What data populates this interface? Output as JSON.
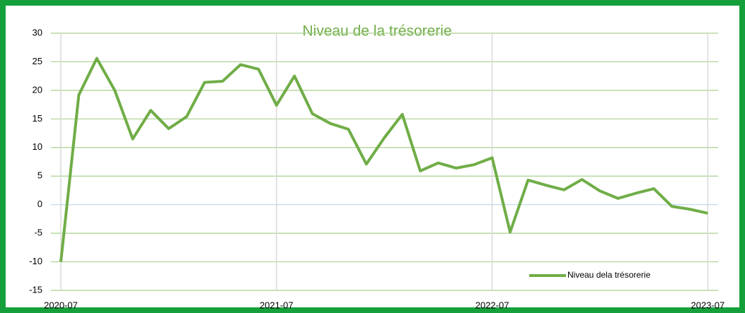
{
  "chart_data": {
    "type": "line",
    "title": "Niveau de la trésorerie",
    "categories": [
      "2020-07",
      null,
      null,
      null,
      null,
      null,
      null,
      null,
      null,
      null,
      null,
      null,
      "2021-07",
      null,
      null,
      null,
      null,
      null,
      null,
      null,
      null,
      null,
      null,
      null,
      "2022-07",
      null,
      null,
      null,
      null,
      null,
      null,
      null,
      null,
      null,
      null,
      null,
      "2023-07"
    ],
    "series": [
      {
        "name": "Niveau dela trésorerie",
        "color": "#70ad47",
        "values": [
          -10,
          19.2,
          25.6,
          20,
          11.5,
          16.5,
          13.3,
          15.4,
          21.4,
          21.6,
          24.5,
          23.7,
          17.4,
          22.5,
          15.9,
          14.2,
          13.2,
          7.1,
          11.7,
          15.8,
          5.9,
          7.3,
          6.4,
          7.0,
          8.2,
          -4.8,
          4.3,
          3.4,
          2.6,
          4.4,
          2.4,
          1.1,
          2.0,
          2.8,
          -0.3,
          -0.8,
          -1.5
        ]
      }
    ],
    "ylim": [
      -15,
      30
    ],
    "yticks": [
      -15,
      -10,
      -5,
      0,
      5,
      10,
      15,
      20,
      25,
      30
    ],
    "grid": true,
    "legend": "bottom-right"
  }
}
